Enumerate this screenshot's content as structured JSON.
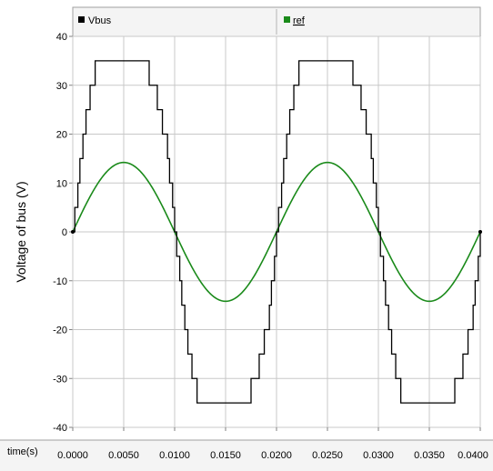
{
  "chart_data": {
    "type": "line",
    "ylabel": "Voltage of bus (V)",
    "xlabel": "time(s)",
    "xlim": [
      0,
      0.04
    ],
    "ylim": [
      -40,
      40
    ],
    "x_ticks": [
      "0.0000",
      "0.0050",
      "0.0100",
      "0.0150",
      "0.0200",
      "0.0250",
      "0.0300",
      "0.0350",
      "0.0400"
    ],
    "y_ticks": [
      "40",
      "30",
      "20",
      "10",
      "0",
      "-10",
      "-20",
      "-30",
      "-40"
    ],
    "grid": true,
    "legend_position": "top",
    "series": [
      {
        "name": "Vbus",
        "color": "#000000",
        "style": "staircase",
        "levels": [
          0,
          5,
          10,
          15,
          20,
          25,
          30,
          35
        ],
        "x": [
          0.0,
          0.0002,
          0.0005,
          0.0007,
          0.001,
          0.0013,
          0.0017,
          0.0022,
          0.003,
          0.0035,
          0.007,
          0.0075,
          0.0083,
          0.0088,
          0.0093,
          0.0095,
          0.0098,
          0.01,
          0.0102,
          0.0105,
          0.0107,
          0.011,
          0.0113,
          0.0117,
          0.0122,
          0.013,
          0.0135,
          0.017,
          0.0175,
          0.0183,
          0.0188,
          0.0193,
          0.0195,
          0.0198,
          0.02
        ],
        "y": [
          0,
          5,
          10,
          15,
          20,
          25,
          30,
          35,
          35,
          35,
          35,
          30,
          25,
          20,
          15,
          10,
          5,
          0,
          -5,
          -10,
          -15,
          -20,
          -25,
          -30,
          -35,
          -35,
          -35,
          -35,
          -30,
          -25,
          -20,
          -15,
          -10,
          -5,
          0
        ]
      },
      {
        "name": "ref",
        "color": "#1a8a1a",
        "style": "sine",
        "amplitude": 14.2,
        "frequency_hz": 50
      }
    ]
  }
}
